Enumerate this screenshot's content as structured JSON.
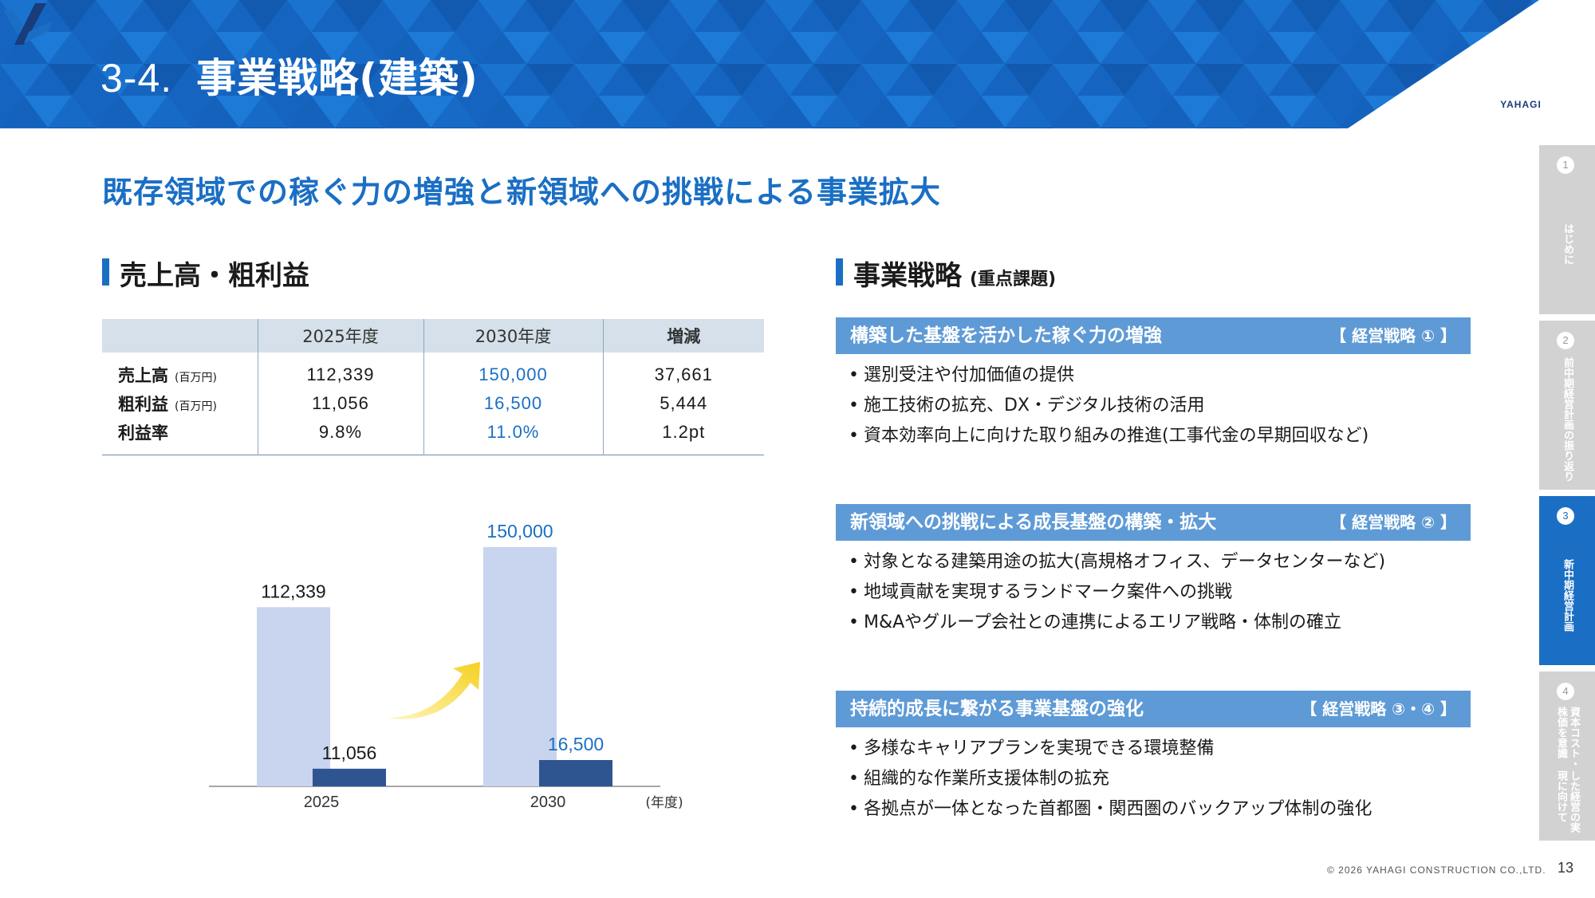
{
  "header": {
    "section_number": "3-4.",
    "title": "事業戦略(建築)",
    "logo_text": "YAHAGI"
  },
  "headline": "既存領域での稼ぐ力の増強と新領域への挑戦による事業拡大",
  "left_section": {
    "heading": "売上高・粗利益",
    "table": {
      "columns": [
        "",
        "2025年度",
        "2030年度",
        "増減"
      ],
      "rows": [
        {
          "label": "売上高",
          "unit": "(百万円)",
          "v2025": "112,339",
          "v2030": "150,000",
          "diff": "37,661"
        },
        {
          "label": "粗利益",
          "unit": "(百万円)",
          "v2025": "11,056",
          "v2030": "16,500",
          "diff": "5,444"
        },
        {
          "label": "利益率",
          "unit": "",
          "v2025": "9.8%",
          "v2030": "11.0%",
          "diff": "1.2pt"
        }
      ]
    }
  },
  "chart_data": {
    "type": "bar",
    "categories": [
      "2025",
      "2030"
    ],
    "xlabel": "(年度)",
    "series": [
      {
        "name": "売上高",
        "values": [
          112339,
          150000
        ],
        "color": "#c9d4ee"
      },
      {
        "name": "粗利益",
        "values": [
          11056,
          16500
        ],
        "color": "#2f5590"
      }
    ],
    "data_labels": {
      "sales": [
        "112,339",
        "150,000"
      ],
      "gross": [
        "11,056",
        "16,500"
      ]
    },
    "ylim": [
      0,
      160000
    ]
  },
  "right_section": {
    "heading": "事業戦略",
    "heading_sub": "(重点課題)",
    "strategies": [
      {
        "title": "構築した基盤を活かした稼ぐ力の増強",
        "tag": "【 経営戦略 ① 】",
        "items": [
          "選別受注や付加価値の提供",
          "施工技術の拡充、DX・デジタル技術の活用",
          "資本効率向上に向けた取り組みの推進(工事代金の早期回収など)"
        ]
      },
      {
        "title": "新領域への挑戦による成長基盤の構築・拡大",
        "tag": "【 経営戦略 ② 】",
        "items": [
          "対象となる建築用途の拡大(高規格オフィス、データセンターなど)",
          "地域貢献を実現するランドマーク案件への挑戦",
          "M&Aやグループ会社との連携によるエリア戦略・体制の確立"
        ]
      },
      {
        "title": "持続的成長に繋がる事業基盤の強化",
        "tag": "【 経営戦略 ③・④ 】",
        "items": [
          "多様なキャリアプランを実現できる環境整備",
          "組織的な作業所支援体制の拡充",
          "各拠点が一体となった首都圏・関西圏のバックアップ体制の強化"
        ]
      }
    ]
  },
  "side_nav": [
    {
      "num": "1",
      "lines": [
        "はじめに"
      ],
      "active": false
    },
    {
      "num": "2",
      "lines": [
        "前中期経営計画の",
        "振り返り"
      ],
      "active": false
    },
    {
      "num": "3",
      "lines": [
        "新中期経営計画"
      ],
      "active": true
    },
    {
      "num": "4",
      "lines": [
        "資本コスト・株価を意識",
        "した経営の実現に向けて"
      ],
      "active": false
    }
  ],
  "footer": {
    "copyright": "© 2026 YAHAGI CONSTRUCTION CO.,LTD.",
    "page": "13"
  },
  "colors": {
    "brand_blue": "#1a6fc4",
    "banner_blue": "#1565c0",
    "strategy_bar": "#5e9ad6",
    "nav_inactive": "#d2d2d2"
  }
}
